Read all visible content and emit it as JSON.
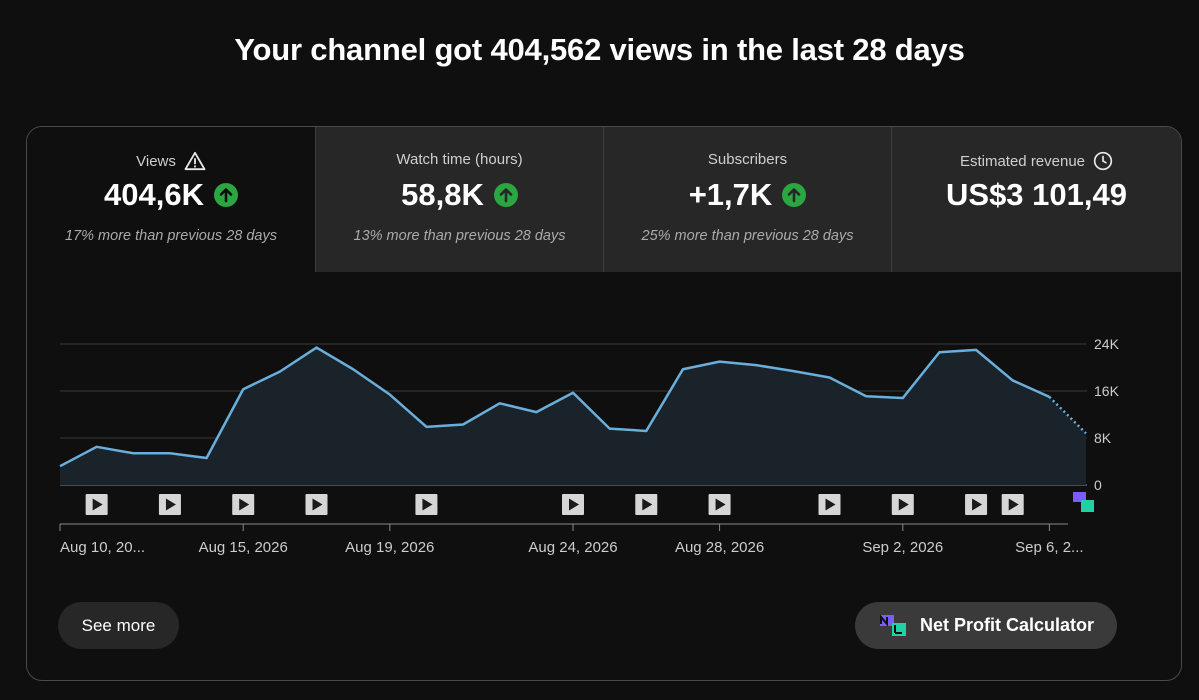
{
  "headline": "Your channel got 404,562 views in the last 28 days",
  "metrics": [
    {
      "label": "Views",
      "value": "404,6K",
      "note": "17% more than previous 28 days",
      "icon": "warning-icon",
      "trend": "up"
    },
    {
      "label": "Watch time (hours)",
      "value": "58,8K",
      "note": "13% more than previous 28 days",
      "trend": "up"
    },
    {
      "label": "Subscribers",
      "value": "+1,7K",
      "note": "25% more than previous 28 days",
      "trend": "up"
    },
    {
      "label": "Estimated revenue",
      "value": "US$3 101,49",
      "note": "",
      "icon": "clock-icon"
    }
  ],
  "colors": {
    "line": "#6aaedb",
    "trend_up": "#2ba640",
    "background": "#0f0f0f",
    "tile": "#272727"
  },
  "buttons": {
    "see_more": "See more",
    "net_profit": "Net Profit Calculator"
  },
  "chart_data": {
    "type": "area",
    "ylim": [
      0,
      24000
    ],
    "yticks": [
      "24K",
      "16K",
      "8K",
      "0"
    ],
    "ytick_values": [
      24000,
      16000,
      8000,
      0
    ],
    "x": [
      "Aug 10",
      "Aug 11",
      "Aug 12",
      "Aug 13",
      "Aug 14",
      "Aug 15",
      "Aug 16",
      "Aug 17",
      "Aug 18",
      "Aug 19",
      "Aug 20",
      "Aug 21",
      "Aug 22",
      "Aug 23",
      "Aug 24",
      "Aug 25",
      "Aug 26",
      "Aug 27",
      "Aug 28",
      "Aug 29",
      "Aug 30",
      "Aug 31",
      "Sep 1",
      "Sep 2",
      "Sep 3",
      "Sep 4",
      "Sep 5",
      "Sep 6",
      "Sep 7"
    ],
    "values": [
      3200,
      6500,
      5400,
      5400,
      4600,
      16300,
      19300,
      23400,
      19700,
      15400,
      9900,
      10300,
      13900,
      12400,
      15700,
      9600,
      9200,
      19700,
      21000,
      20400,
      19400,
      18300,
      15100,
      14800,
      22600,
      23000,
      17800,
      15000,
      8800
    ],
    "projected_from_index": 27,
    "xtick_labels": [
      "Aug 10, 20...",
      "Aug 15, 2026",
      "Aug 19, 2026",
      "Aug 24, 2026",
      "Aug 28, 2026",
      "Sep 2, 2026",
      "Sep 6, 2..."
    ],
    "xtick_indices": [
      0,
      5,
      9,
      14,
      18,
      23,
      27
    ],
    "video_markers_index": [
      1,
      3,
      5,
      7,
      10,
      14,
      16,
      18,
      21,
      23,
      25,
      26
    ]
  }
}
